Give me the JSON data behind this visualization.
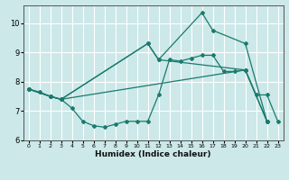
{
  "title": "",
  "xlabel": "Humidex (Indice chaleur)",
  "bg_color": "#cce8e8",
  "grid_color": "#ffffff",
  "line_color": "#1a7a6e",
  "xlim": [
    -0.5,
    23.5
  ],
  "ylim": [
    6,
    10.6
  ],
  "yticks": [
    6,
    7,
    8,
    9,
    10
  ],
  "xticks": [
    0,
    1,
    2,
    3,
    4,
    5,
    6,
    7,
    8,
    9,
    10,
    11,
    12,
    13,
    14,
    15,
    16,
    17,
    18,
    19,
    20,
    21,
    22,
    23
  ],
  "lines": [
    {
      "x": [
        0,
        1,
        2,
        3,
        4,
        5,
        6,
        7,
        8,
        9,
        10,
        11,
        12,
        13,
        14,
        15,
        16,
        17,
        18,
        19,
        20,
        21,
        22,
        23
      ],
      "y": [
        7.75,
        7.65,
        7.5,
        7.4,
        7.1,
        6.65,
        6.5,
        6.45,
        6.55,
        6.65,
        6.65,
        6.65,
        7.55,
        8.75,
        8.7,
        8.8,
        8.9,
        8.9,
        8.35,
        8.35,
        8.4,
        7.55,
        7.55,
        6.65
      ]
    },
    {
      "x": [
        0,
        2,
        3,
        11,
        12,
        16,
        17,
        20,
        22
      ],
      "y": [
        7.75,
        7.5,
        7.4,
        9.3,
        8.75,
        10.35,
        9.75,
        9.3,
        6.65
      ]
    },
    {
      "x": [
        0,
        2,
        3,
        11,
        12,
        20,
        22
      ],
      "y": [
        7.75,
        7.5,
        7.4,
        9.3,
        8.75,
        8.4,
        6.65
      ]
    },
    {
      "x": [
        0,
        2,
        3,
        20,
        22
      ],
      "y": [
        7.75,
        7.5,
        7.4,
        8.4,
        6.65
      ]
    }
  ]
}
